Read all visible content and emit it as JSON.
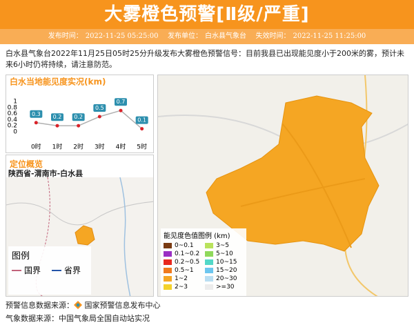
{
  "header": {
    "title": "大雾橙色预警[Ⅱ级/严重]",
    "issue_time_label": "发布时间：",
    "issue_time": "2022-11-25 05:25:00",
    "issuer_label": "发布单位：",
    "issuer": "白水县气象台",
    "expire_label": "失效时间：",
    "expire_time": "2022-11-25 11:25:00"
  },
  "description": "白水县气象台2022年11月25日05时25分升级发布大雾橙色预警信号：目前我县已出现能见度小于200米的雾，预计未来6小时仍将持续，请注意防范。",
  "chart_data": {
    "type": "line",
    "title": "白水当地能见度实况(km)",
    "categories": [
      "0时",
      "1时",
      "2时",
      "3时",
      "4时",
      "5时"
    ],
    "values": [
      0.3,
      0.2,
      0.2,
      0.5,
      0.7,
      0.1
    ],
    "ylim": [
      0,
      1
    ],
    "yticks": [
      0,
      0.2,
      0.4,
      0.6,
      0.8,
      1
    ],
    "line_color": "#b0b0b0",
    "point_color": "#d9232a",
    "label_color": "#2d8fae"
  },
  "location": {
    "title": "定位概览",
    "path": "陕西省-渭南市-白水县",
    "legend_title": "图例",
    "legend": [
      {
        "label": "国界",
        "color": "#c2627a"
      },
      {
        "label": "省界",
        "color": "#2354a8"
      }
    ]
  },
  "visibility_legend": {
    "title": "能见度色值图例 (km)",
    "items": [
      {
        "label": "0~0.1",
        "color": "#7a3b12"
      },
      {
        "label": "0.1~0.2",
        "color": "#9a2fc4"
      },
      {
        "label": "0.2~0.5",
        "color": "#e8281e"
      },
      {
        "label": "0.5~1",
        "color": "#f07a1d"
      },
      {
        "label": "1~2",
        "color": "#f5a623"
      },
      {
        "label": "2~3",
        "color": "#f3d22b"
      },
      {
        "label": "3~5",
        "color": "#b9e25c"
      },
      {
        "label": "5~10",
        "color": "#8fd95b"
      },
      {
        "label": "10~15",
        "color": "#52d8c8"
      },
      {
        "label": "15~20",
        "color": "#6cc6ef"
      },
      {
        "label": "20~30",
        "color": "#b9def2"
      },
      {
        "label": ">=30",
        "color": "#ececec"
      }
    ]
  },
  "footer": {
    "warning_source_label": "预警信息数据来源：",
    "warning_source": "国家预警信息发布中心",
    "weather_source": "气象数据来源：中国气象局全国自动站实况"
  }
}
